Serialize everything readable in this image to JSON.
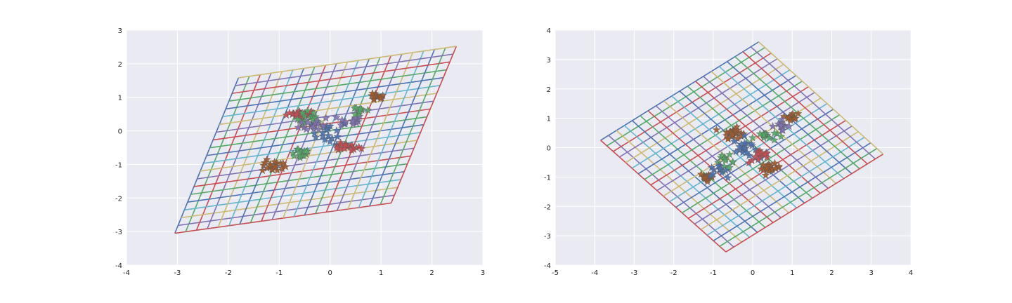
{
  "figure": {
    "background": "#ffffff",
    "plot_background": "#eaeaf2",
    "grid_color": "#ffffff"
  },
  "palette": [
    "#4c72b0",
    "#55a868",
    "#c44e52",
    "#8172b2",
    "#ccb974",
    "#64b5cd"
  ],
  "chart_data": [
    {
      "type": "line",
      "title": "",
      "xlabel": "",
      "ylabel": "",
      "xlim": [
        -4,
        3
      ],
      "ylim": [
        -4,
        3
      ],
      "xticks": [
        "-4",
        "-3",
        "-2",
        "-1",
        "0",
        "1",
        "2",
        "3"
      ],
      "yticks": [
        "-4",
        "-3",
        "-2",
        "-1",
        "0",
        "1",
        "2",
        "3"
      ],
      "grid": true,
      "legend": "none",
      "mesh": {
        "description": "transformed coordinate mesh",
        "corners": {
          "p00": [
            -3.05,
            -3.05
          ],
          "p10": [
            1.2,
            -2.15
          ],
          "p01": [
            -1.8,
            1.58
          ],
          "p11": [
            2.48,
            2.52
          ]
        },
        "lines_per_direction": 21
      },
      "scatter": {
        "marker": "star",
        "clusters": [
          {
            "center": [
              -0.55,
              0.5
            ],
            "spread": [
              0.25,
              0.1
            ],
            "count": 25,
            "color": "#c44e52"
          },
          {
            "center": [
              -0.4,
              0.35
            ],
            "spread": [
              0.2,
              0.2
            ],
            "count": 15,
            "color": "#55a868"
          },
          {
            "center": [
              0.0,
              -0.05
            ],
            "spread": [
              0.3,
              0.3
            ],
            "count": 20,
            "color": "#4c72b0"
          },
          {
            "center": [
              0.3,
              -0.5
            ],
            "spread": [
              0.25,
              0.1
            ],
            "count": 20,
            "color": "#c44e52"
          },
          {
            "center": [
              0.9,
              1.0
            ],
            "spread": [
              0.15,
              0.1
            ],
            "count": 15,
            "color": "#a05a2c"
          },
          {
            "center": [
              -1.1,
              -1.05
            ],
            "spread": [
              0.2,
              0.15
            ],
            "count": 20,
            "color": "#a05a2c"
          },
          {
            "center": [
              0.4,
              0.3
            ],
            "spread": [
              0.2,
              0.15
            ],
            "count": 15,
            "color": "#8172b2"
          },
          {
            "center": [
              -0.6,
              -0.65
            ],
            "spread": [
              0.2,
              0.15
            ],
            "count": 15,
            "color": "#55a868"
          },
          {
            "center": [
              0.6,
              0.6
            ],
            "spread": [
              0.2,
              0.15
            ],
            "count": 10,
            "color": "#55a868"
          },
          {
            "center": [
              -0.3,
              0.2
            ],
            "spread": [
              0.25,
              0.2
            ],
            "count": 15,
            "color": "#8172b2"
          }
        ]
      }
    },
    {
      "type": "line",
      "title": "",
      "xlabel": "",
      "ylabel": "",
      "xlim": [
        -5,
        4
      ],
      "ylim": [
        -4,
        4
      ],
      "xticks": [
        "-5",
        "-4",
        "-3",
        "-2",
        "-1",
        "0",
        "1",
        "2",
        "3",
        "4"
      ],
      "yticks": [
        "-4",
        "-3",
        "-2",
        "-1",
        "0",
        "1",
        "2",
        "3",
        "4"
      ],
      "grid": true,
      "legend": "none",
      "mesh": {
        "description": "rotated coordinate mesh",
        "corners": {
          "p00": [
            -3.85,
            0.25
          ],
          "p10": [
            -0.68,
            -3.55
          ],
          "p01": [
            0.15,
            3.6
          ],
          "p11": [
            3.3,
            -0.22
          ]
        },
        "lines_per_direction": 21
      },
      "scatter": {
        "marker": "star",
        "clusters": [
          {
            "center": [
              -0.5,
              0.5
            ],
            "spread": [
              0.2,
              0.15
            ],
            "count": 25,
            "color": "#a05a2c"
          },
          {
            "center": [
              -0.2,
              0.0
            ],
            "spread": [
              0.25,
              0.3
            ],
            "count": 20,
            "color": "#4c72b0"
          },
          {
            "center": [
              0.3,
              0.4
            ],
            "spread": [
              0.25,
              0.15
            ],
            "count": 15,
            "color": "#55a868"
          },
          {
            "center": [
              1.0,
              1.05
            ],
            "spread": [
              0.12,
              0.1
            ],
            "count": 15,
            "color": "#a05a2c"
          },
          {
            "center": [
              0.45,
              -0.7
            ],
            "spread": [
              0.2,
              0.12
            ],
            "count": 20,
            "color": "#a05a2c"
          },
          {
            "center": [
              -1.15,
              -1.0
            ],
            "spread": [
              0.15,
              0.12
            ],
            "count": 20,
            "color": "#a05a2c"
          },
          {
            "center": [
              -0.7,
              -0.5
            ],
            "spread": [
              0.2,
              0.2
            ],
            "count": 15,
            "color": "#55a868"
          },
          {
            "center": [
              0.7,
              0.75
            ],
            "spread": [
              0.2,
              0.15
            ],
            "count": 12,
            "color": "#8172b2"
          },
          {
            "center": [
              -0.9,
              -0.8
            ],
            "spread": [
              0.2,
              0.15
            ],
            "count": 12,
            "color": "#4c72b0"
          },
          {
            "center": [
              0.2,
              -0.3
            ],
            "spread": [
              0.25,
              0.2
            ],
            "count": 15,
            "color": "#c44e52"
          }
        ]
      }
    }
  ]
}
